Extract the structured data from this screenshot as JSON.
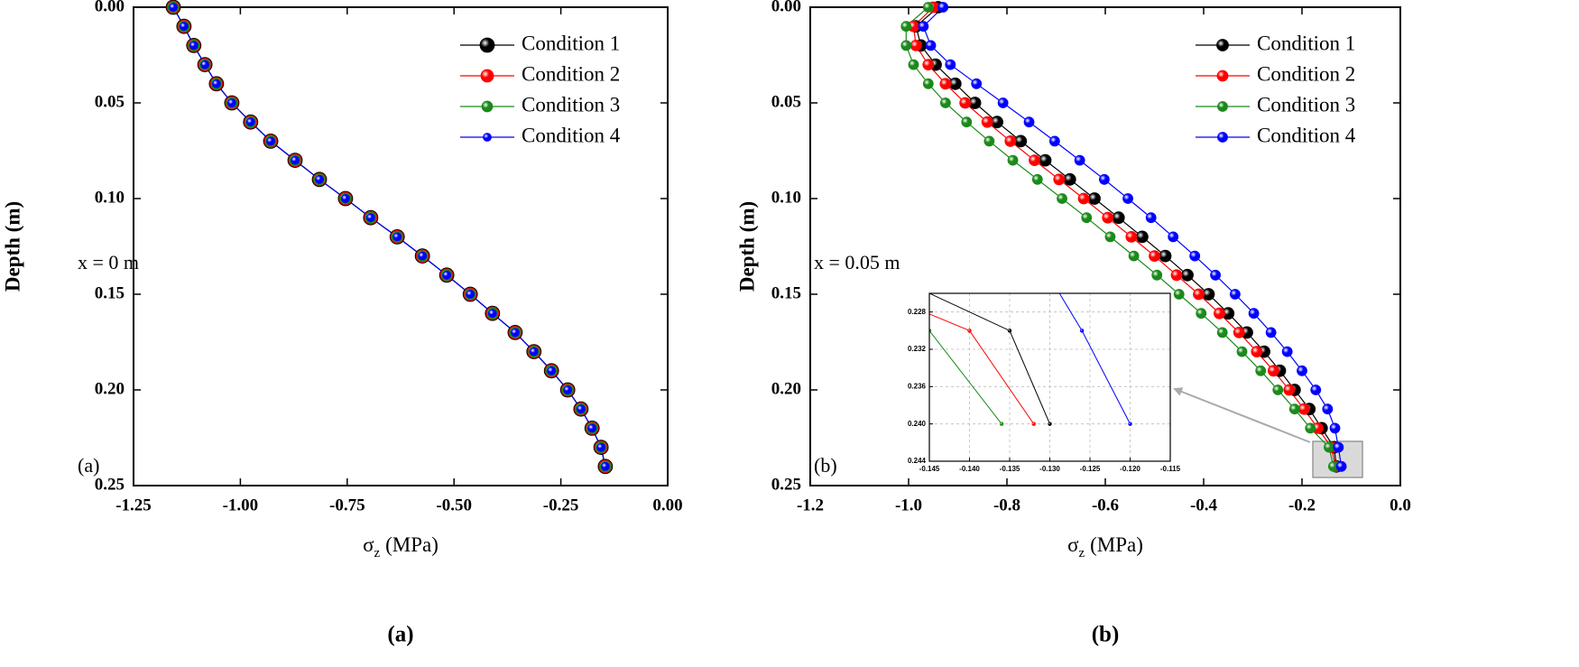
{
  "chart_data": [
    {
      "type": "line",
      "ylabel": "Depth (m)",
      "xlabel": {
        "symbol": "σ",
        "subscript": "z",
        "unit": "(MPa)"
      },
      "annotation": "x = 0 m",
      "panel_label": "(a)",
      "caption": "(a)",
      "legend": "upper right",
      "y_inverted": true,
      "xlim": [
        -1.25,
        0
      ],
      "xticks": [
        -1.25,
        {
          "value": -1.0,
          "label": "-1.00"
        },
        -0.75,
        {
          "value": -0.5,
          "label": "-0.50"
        },
        -0.25,
        {
          "value": 0,
          "label": "0.00"
        }
      ],
      "ylim": [
        0,
        0.25
      ],
      "yticks": [
        {
          "value": 0,
          "label": "0.00"
        },
        0.05,
        {
          "value": 0.1,
          "label": "0.10"
        },
        0.15,
        {
          "value": 0.2,
          "label": "0.20"
        },
        0.25
      ],
      "y": [
        0,
        0.01,
        0.02,
        0.03,
        0.04,
        0.05,
        0.06,
        0.07,
        0.08,
        0.09,
        0.1,
        0.11,
        0.12,
        0.13,
        0.14,
        0.15,
        0.16,
        0.17,
        0.18,
        0.19,
        0.2,
        0.21,
        0.22,
        0.23,
        0.24
      ],
      "series": [
        {
          "name": "Condition 1",
          "color": "#000000",
          "marker_size": 8,
          "values": [
            -1.157,
            -1.132,
            -1.109,
            -1.083,
            -1.056,
            -1.02,
            -0.976,
            -0.929,
            -0.872,
            -0.815,
            -0.754,
            -0.695,
            -0.633,
            -0.574,
            -0.517,
            -0.462,
            -0.41,
            -0.357,
            -0.313,
            -0.272,
            -0.234,
            -0.203,
            -0.177,
            -0.156,
            -0.146
          ]
        },
        {
          "name": "Condition 2",
          "color": "#ff0000",
          "marker_size": 7,
          "values": [
            -1.157,
            -1.132,
            -1.109,
            -1.083,
            -1.056,
            -1.02,
            -0.976,
            -0.929,
            -0.872,
            -0.815,
            -0.754,
            -0.695,
            -0.633,
            -0.574,
            -0.517,
            -0.462,
            -0.41,
            -0.357,
            -0.313,
            -0.272,
            -0.234,
            -0.203,
            -0.177,
            -0.156,
            -0.146
          ]
        },
        {
          "name": "Condition 3",
          "color": "#1a8a1a",
          "marker_size": 6,
          "values": [
            -1.157,
            -1.132,
            -1.109,
            -1.083,
            -1.056,
            -1.02,
            -0.976,
            -0.929,
            -0.872,
            -0.815,
            -0.754,
            -0.695,
            -0.633,
            -0.574,
            -0.517,
            -0.462,
            -0.41,
            -0.357,
            -0.313,
            -0.272,
            -0.234,
            -0.203,
            -0.177,
            -0.156,
            -0.146
          ]
        },
        {
          "name": "Condition 4",
          "color": "#0000ff",
          "marker_size": 4.5,
          "values": [
            -1.157,
            -1.132,
            -1.109,
            -1.083,
            -1.056,
            -1.02,
            -0.976,
            -0.929,
            -0.872,
            -0.815,
            -0.754,
            -0.695,
            -0.633,
            -0.574,
            -0.517,
            -0.462,
            -0.41,
            -0.357,
            -0.313,
            -0.272,
            -0.234,
            -0.203,
            -0.177,
            -0.156,
            -0.146
          ]
        }
      ]
    },
    {
      "type": "line",
      "ylabel": "Depth (m)",
      "xlabel": {
        "symbol": "σ",
        "subscript": "z",
        "unit": "(MPa)"
      },
      "annotation": "x = 0.05 m",
      "panel_label": "(b)",
      "caption": "(b)",
      "legend": "upper right",
      "y_inverted": true,
      "xlim": [
        -1.2,
        0
      ],
      "xticks": [
        -1.2,
        {
          "value": -1.0,
          "label": "-1.0"
        },
        -0.8,
        -0.6,
        -0.4,
        -0.2,
        {
          "value": 0,
          "label": "0.0"
        }
      ],
      "ylim": [
        0,
        0.25
      ],
      "yticks": [
        {
          "value": 0,
          "label": "0.00"
        },
        0.05,
        {
          "value": 0.1,
          "label": "0.10"
        },
        0.15,
        {
          "value": 0.2,
          "label": "0.20"
        },
        0.25
      ],
      "y": [
        0,
        0.01,
        0.02,
        0.03,
        0.04,
        0.05,
        0.06,
        0.07,
        0.08,
        0.09,
        0.1,
        0.11,
        0.12,
        0.13,
        0.14,
        0.15,
        0.16,
        0.17,
        0.18,
        0.19,
        0.2,
        0.21,
        0.22,
        0.23,
        0.24
      ],
      "series": [
        {
          "name": "Condition 1",
          "color": "#000000",
          "marker_size": 6.5,
          "values": [
            -0.94,
            -0.985,
            -0.975,
            -0.945,
            -0.905,
            -0.865,
            -0.82,
            -0.772,
            -0.722,
            -0.672,
            -0.622,
            -0.573,
            -0.525,
            -0.478,
            -0.433,
            -0.39,
            -0.35,
            -0.312,
            -0.277,
            -0.245,
            -0.215,
            -0.185,
            -0.16,
            -0.135,
            -0.13
          ]
        },
        {
          "name": "Condition 2",
          "color": "#ff0000",
          "marker_size": 6,
          "values": [
            -0.95,
            -0.99,
            -0.985,
            -0.96,
            -0.925,
            -0.885,
            -0.84,
            -0.793,
            -0.744,
            -0.694,
            -0.644,
            -0.595,
            -0.547,
            -0.5,
            -0.455,
            -0.41,
            -0.368,
            -0.328,
            -0.292,
            -0.258,
            -0.226,
            -0.196,
            -0.168,
            -0.14,
            -0.132
          ]
        },
        {
          "name": "Condition 3",
          "color": "#1a8a1a",
          "marker_size": 5.5,
          "values": [
            -0.96,
            -1.005,
            -1.005,
            -0.99,
            -0.96,
            -0.925,
            -0.882,
            -0.836,
            -0.788,
            -0.738,
            -0.688,
            -0.638,
            -0.59,
            -0.542,
            -0.495,
            -0.45,
            -0.405,
            -0.362,
            -0.322,
            -0.284,
            -0.249,
            -0.215,
            -0.183,
            -0.145,
            -0.136
          ]
        },
        {
          "name": "Condition 4",
          "color": "#0000ff",
          "marker_size": 5.5,
          "values": [
            -0.93,
            -0.97,
            -0.955,
            -0.915,
            -0.862,
            -0.808,
            -0.755,
            -0.703,
            -0.652,
            -0.602,
            -0.554,
            -0.507,
            -0.462,
            -0.418,
            -0.376,
            -0.336,
            -0.298,
            -0.263,
            -0.23,
            -0.2,
            -0.172,
            -0.148,
            -0.133,
            -0.126,
            -0.12
          ]
        }
      ],
      "inset": {
        "grid": true,
        "xlim": [
          -0.145,
          -0.115
        ],
        "xticks": [
          -0.145,
          {
            "value": -0.14,
            "label": "-0.140"
          },
          -0.135,
          {
            "value": -0.13,
            "label": "-0.130"
          },
          -0.125,
          {
            "value": -0.12,
            "label": "-0.120"
          },
          -0.115
        ],
        "ylim": [
          0.226,
          0.244
        ],
        "yticks": [
          0.228,
          0.232,
          0.236,
          {
            "value": 0.24,
            "label": "0.240"
          },
          0.244
        ]
      }
    }
  ]
}
